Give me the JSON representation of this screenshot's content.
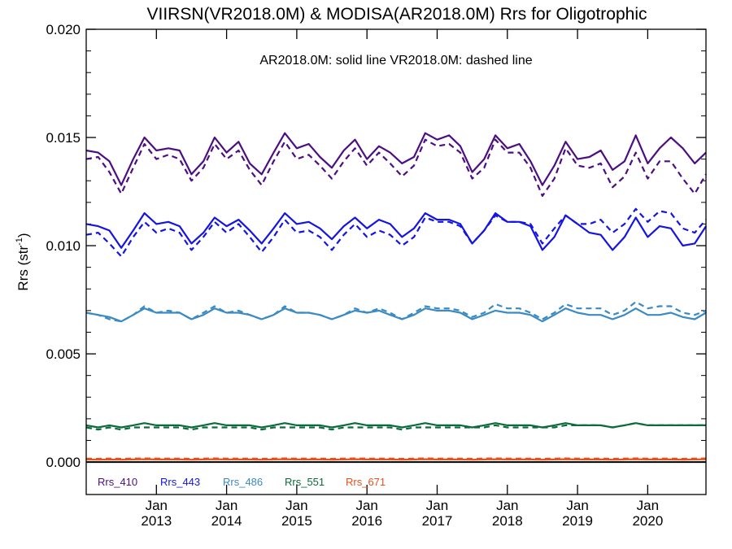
{
  "chart_data": {
    "type": "line",
    "title": "VIIRSN(VR2018.0M) & MODISA(AR2018.0M)  Rrs for Oligotrophic",
    "subtitle": "AR2018.0M: solid line   VR2018.0M: dashed line",
    "ylabel_main": "Rrs (str",
    "ylabel_sup": "-1",
    "ylabel_close": ")",
    "ylim": [
      -0.0015,
      0.02
    ],
    "xlim": [
      2012.0,
      2020.83
    ],
    "yticks": [
      0.0,
      0.005,
      0.01,
      0.015,
      0.02
    ],
    "ytick_labels": [
      "0.000",
      "0.005",
      "0.010",
      "0.015",
      "0.020"
    ],
    "xticks": [
      {
        "x": 2013.0,
        "month": "Jan",
        "year": "2013"
      },
      {
        "x": 2014.0,
        "month": "Jan",
        "year": "2014"
      },
      {
        "x": 2015.0,
        "month": "Jan",
        "year": "2015"
      },
      {
        "x": 2016.0,
        "month": "Jan",
        "year": "2016"
      },
      {
        "x": 2017.0,
        "month": "Jan",
        "year": "2017"
      },
      {
        "x": 2018.0,
        "month": "Jan",
        "year": "2018"
      },
      {
        "x": 2019.0,
        "month": "Jan",
        "year": "2019"
      },
      {
        "x": 2020.0,
        "month": "Jan",
        "year": "2020"
      }
    ],
    "x": [
      2012.0,
      2012.17,
      2012.33,
      2012.5,
      2012.67,
      2012.83,
      2013.0,
      2013.17,
      2013.33,
      2013.5,
      2013.67,
      2013.83,
      2014.0,
      2014.17,
      2014.33,
      2014.5,
      2014.67,
      2014.83,
      2015.0,
      2015.17,
      2015.33,
      2015.5,
      2015.67,
      2015.83,
      2016.0,
      2016.17,
      2016.33,
      2016.5,
      2016.67,
      2016.83,
      2017.0,
      2017.17,
      2017.33,
      2017.5,
      2017.67,
      2017.83,
      2018.0,
      2018.17,
      2018.33,
      2018.5,
      2018.67,
      2018.83,
      2019.0,
      2019.17,
      2019.33,
      2019.5,
      2019.67,
      2019.83,
      2020.0,
      2020.17,
      2020.33,
      2020.5,
      2020.67,
      2020.83
    ],
    "series": [
      {
        "name": "Rrs_410",
        "color": "#4b0f82",
        "style": "solid",
        "values": [
          0.0144,
          0.0143,
          0.0139,
          0.0128,
          0.014,
          0.015,
          0.0144,
          0.0145,
          0.0144,
          0.0133,
          0.0139,
          0.015,
          0.0143,
          0.0148,
          0.0138,
          0.0133,
          0.0143,
          0.0152,
          0.0145,
          0.0147,
          0.0141,
          0.0136,
          0.0144,
          0.0149,
          0.014,
          0.0146,
          0.0143,
          0.0138,
          0.0141,
          0.0152,
          0.0149,
          0.0151,
          0.0146,
          0.0134,
          0.014,
          0.0151,
          0.0145,
          0.0147,
          0.0139,
          0.0128,
          0.0137,
          0.0148,
          0.014,
          0.0141,
          0.0144,
          0.0135,
          0.0139,
          0.0151,
          0.0138,
          0.0145,
          0.015,
          0.0145,
          0.0138,
          0.0143
        ]
      },
      {
        "name": "Rrs_410 VR2018.0M",
        "color": "#4b0f82",
        "style": "dashed",
        "values": [
          0.014,
          0.0141,
          0.0134,
          0.0124,
          0.0136,
          0.0147,
          0.014,
          0.0142,
          0.014,
          0.013,
          0.0136,
          0.0147,
          0.014,
          0.0144,
          0.0135,
          0.0128,
          0.0139,
          0.0148,
          0.014,
          0.0142,
          0.0137,
          0.0131,
          0.0139,
          0.0145,
          0.0137,
          0.0143,
          0.0138,
          0.0132,
          0.0137,
          0.0149,
          0.0146,
          0.0147,
          0.0143,
          0.0131,
          0.0136,
          0.0149,
          0.0143,
          0.0143,
          0.0136,
          0.0123,
          0.0131,
          0.0145,
          0.0137,
          0.0136,
          0.0138,
          0.0127,
          0.0132,
          0.0143,
          0.0131,
          0.0139,
          0.0139,
          0.0131,
          0.0124,
          0.0133
        ]
      },
      {
        "name": "Rrs_443",
        "color": "#1414e6",
        "style": "solid",
        "values": [
          0.011,
          0.0109,
          0.0107,
          0.0099,
          0.0107,
          0.0115,
          0.011,
          0.0111,
          0.0109,
          0.0101,
          0.0106,
          0.0113,
          0.0109,
          0.0112,
          0.0107,
          0.0101,
          0.0108,
          0.0115,
          0.011,
          0.0111,
          0.0108,
          0.0103,
          0.0109,
          0.0113,
          0.0108,
          0.0112,
          0.011,
          0.0104,
          0.0108,
          0.0115,
          0.0112,
          0.0112,
          0.011,
          0.0101,
          0.0107,
          0.0115,
          0.0111,
          0.0111,
          0.0109,
          0.0098,
          0.0104,
          0.0114,
          0.011,
          0.0106,
          0.0105,
          0.0098,
          0.0104,
          0.0113,
          0.0104,
          0.0109,
          0.0108,
          0.01,
          0.0101,
          0.0109
        ]
      },
      {
        "name": "Rrs_443 VR2018.0M",
        "color": "#1414e6",
        "style": "dashed",
        "values": [
          0.0105,
          0.0106,
          0.0101,
          0.0095,
          0.0104,
          0.0111,
          0.0106,
          0.0108,
          0.0106,
          0.0098,
          0.0104,
          0.0111,
          0.0106,
          0.011,
          0.0104,
          0.0097,
          0.0104,
          0.0112,
          0.0106,
          0.0107,
          0.0104,
          0.0098,
          0.0105,
          0.011,
          0.0104,
          0.0107,
          0.0105,
          0.01,
          0.0104,
          0.0113,
          0.0111,
          0.0111,
          0.0109,
          0.0101,
          0.0107,
          0.0114,
          0.0111,
          0.0111,
          0.011,
          0.0101,
          0.0108,
          0.0114,
          0.011,
          0.011,
          0.0112,
          0.0106,
          0.011,
          0.0117,
          0.0111,
          0.0116,
          0.0115,
          0.0108,
          0.0106,
          0.0112
        ]
      },
      {
        "name": "Rrs_486",
        "color": "#3a8ac4",
        "style": "solid",
        "values": [
          0.0069,
          0.0068,
          0.0067,
          0.0065,
          0.0068,
          0.0071,
          0.0069,
          0.0069,
          0.0069,
          0.0066,
          0.0068,
          0.0071,
          0.0069,
          0.0069,
          0.0068,
          0.0066,
          0.0068,
          0.0071,
          0.0069,
          0.0069,
          0.0068,
          0.0066,
          0.0068,
          0.007,
          0.0069,
          0.007,
          0.0068,
          0.0066,
          0.0068,
          0.0071,
          0.007,
          0.007,
          0.0069,
          0.0066,
          0.0068,
          0.007,
          0.0069,
          0.0069,
          0.0068,
          0.0065,
          0.0068,
          0.0071,
          0.0069,
          0.0068,
          0.0068,
          0.0066,
          0.0068,
          0.0071,
          0.0068,
          0.0068,
          0.0069,
          0.0067,
          0.0066,
          0.0069
        ]
      },
      {
        "name": "Rrs_486 VR2018.0M",
        "color": "#3a8ac4",
        "style": "dashed",
        "values": [
          0.0069,
          0.0068,
          0.0066,
          0.0065,
          0.0068,
          0.0072,
          0.0069,
          0.007,
          0.0069,
          0.0066,
          0.0069,
          0.0072,
          0.0069,
          0.007,
          0.0068,
          0.0066,
          0.0068,
          0.0072,
          0.0069,
          0.0069,
          0.0068,
          0.0066,
          0.0068,
          0.0071,
          0.0069,
          0.0071,
          0.0069,
          0.0066,
          0.0069,
          0.0072,
          0.0071,
          0.0071,
          0.007,
          0.0067,
          0.0069,
          0.0073,
          0.0071,
          0.0071,
          0.0069,
          0.0066,
          0.0069,
          0.0073,
          0.0071,
          0.0071,
          0.0071,
          0.0068,
          0.007,
          0.0074,
          0.0071,
          0.0072,
          0.0072,
          0.0069,
          0.0068,
          0.007
        ]
      },
      {
        "name": "Rrs_551",
        "color": "#0b6b3a",
        "style": "solid",
        "values": [
          0.0017,
          0.0016,
          0.0017,
          0.0016,
          0.0017,
          0.0018,
          0.0017,
          0.0017,
          0.0017,
          0.0016,
          0.0017,
          0.0018,
          0.0017,
          0.0017,
          0.0017,
          0.0016,
          0.0017,
          0.0018,
          0.0017,
          0.0017,
          0.0017,
          0.0016,
          0.0017,
          0.0018,
          0.0017,
          0.0017,
          0.0017,
          0.0016,
          0.0017,
          0.0018,
          0.0017,
          0.0017,
          0.0017,
          0.0016,
          0.0017,
          0.0018,
          0.0017,
          0.0017,
          0.0017,
          0.0016,
          0.0017,
          0.0018,
          0.0017,
          0.0017,
          0.0017,
          0.0016,
          0.0017,
          0.0018,
          0.0017,
          0.0017,
          0.0017,
          0.0017,
          0.0017,
          0.0017
        ]
      },
      {
        "name": "Rrs_551 VR2018.0M",
        "color": "#0b6b3a",
        "style": "dashed",
        "values": [
          0.0016,
          0.0015,
          0.0016,
          0.0015,
          0.0016,
          0.0016,
          0.0016,
          0.0016,
          0.0016,
          0.0015,
          0.0016,
          0.0016,
          0.0016,
          0.0016,
          0.0016,
          0.0015,
          0.0016,
          0.0016,
          0.0016,
          0.0016,
          0.0016,
          0.0015,
          0.0016,
          0.0016,
          0.0016,
          0.0016,
          0.0016,
          0.0015,
          0.0016,
          0.0016,
          0.0016,
          0.0016,
          0.0016,
          0.0016,
          0.0016,
          0.0017,
          0.0016,
          0.0016,
          0.0016,
          0.0016,
          0.0016,
          0.0017,
          0.0017,
          0.0017,
          0.0017,
          0.0016,
          0.0017,
          0.0018,
          0.0017,
          0.0017,
          0.0017,
          0.0017,
          0.0017,
          0.0017
        ]
      },
      {
        "name": "Rrs_671",
        "color": "#e8501e",
        "style": "solid",
        "values": [
          0.00012,
          0.00011,
          0.00012,
          0.00011,
          0.00012,
          0.00013,
          0.00012,
          0.00012,
          0.00012,
          0.00011,
          0.00012,
          0.00013,
          0.00012,
          0.00012,
          0.00012,
          0.00011,
          0.00012,
          0.00013,
          0.00012,
          0.00012,
          0.00012,
          0.00011,
          0.00012,
          0.00013,
          0.00012,
          0.00012,
          0.00012,
          0.00011,
          0.00012,
          0.00013,
          0.00012,
          0.00012,
          0.00012,
          0.00011,
          0.00012,
          0.00013,
          0.00012,
          0.00012,
          0.00012,
          0.00011,
          0.00012,
          0.00013,
          0.00012,
          0.00012,
          0.00012,
          0.00011,
          0.00012,
          0.00013,
          0.00012,
          0.00012,
          0.00012,
          0.00011,
          0.00012,
          0.00013
        ]
      },
      {
        "name": "Rrs_671 VR2018.0M",
        "color": "#e8501e",
        "style": "dashed",
        "values": [
          0.00016,
          0.00015,
          0.00016,
          0.00015,
          0.00016,
          0.00017,
          0.00016,
          0.00016,
          0.00016,
          0.00015,
          0.00016,
          0.00017,
          0.00016,
          0.00016,
          0.00016,
          0.00015,
          0.00016,
          0.00017,
          0.00016,
          0.00016,
          0.00016,
          0.00015,
          0.00016,
          0.00017,
          0.00016,
          0.00016,
          0.00016,
          0.00015,
          0.00016,
          0.00017,
          0.00016,
          0.00016,
          0.00016,
          0.00015,
          0.00016,
          0.00017,
          0.00016,
          0.00016,
          0.00016,
          0.00015,
          0.00016,
          0.00017,
          0.00016,
          0.00016,
          0.00016,
          0.00015,
          0.00016,
          0.00017,
          0.00016,
          0.00016,
          0.00016,
          0.00015,
          0.00016,
          0.00017
        ]
      }
    ],
    "zero_line": 0.0,
    "legend": [
      {
        "label": "Rrs_410",
        "color": "#4b0f82"
      },
      {
        "label": "Rrs_443",
        "color": "#1414e6"
      },
      {
        "label": "Rrs_486",
        "color": "#3a8ac4"
      },
      {
        "label": "Rrs_551",
        "color": "#0b6b3a"
      },
      {
        "label": "Rrs_671",
        "color": "#e8501e"
      }
    ],
    "legend_placement": "bottom-left",
    "grid": false
  }
}
